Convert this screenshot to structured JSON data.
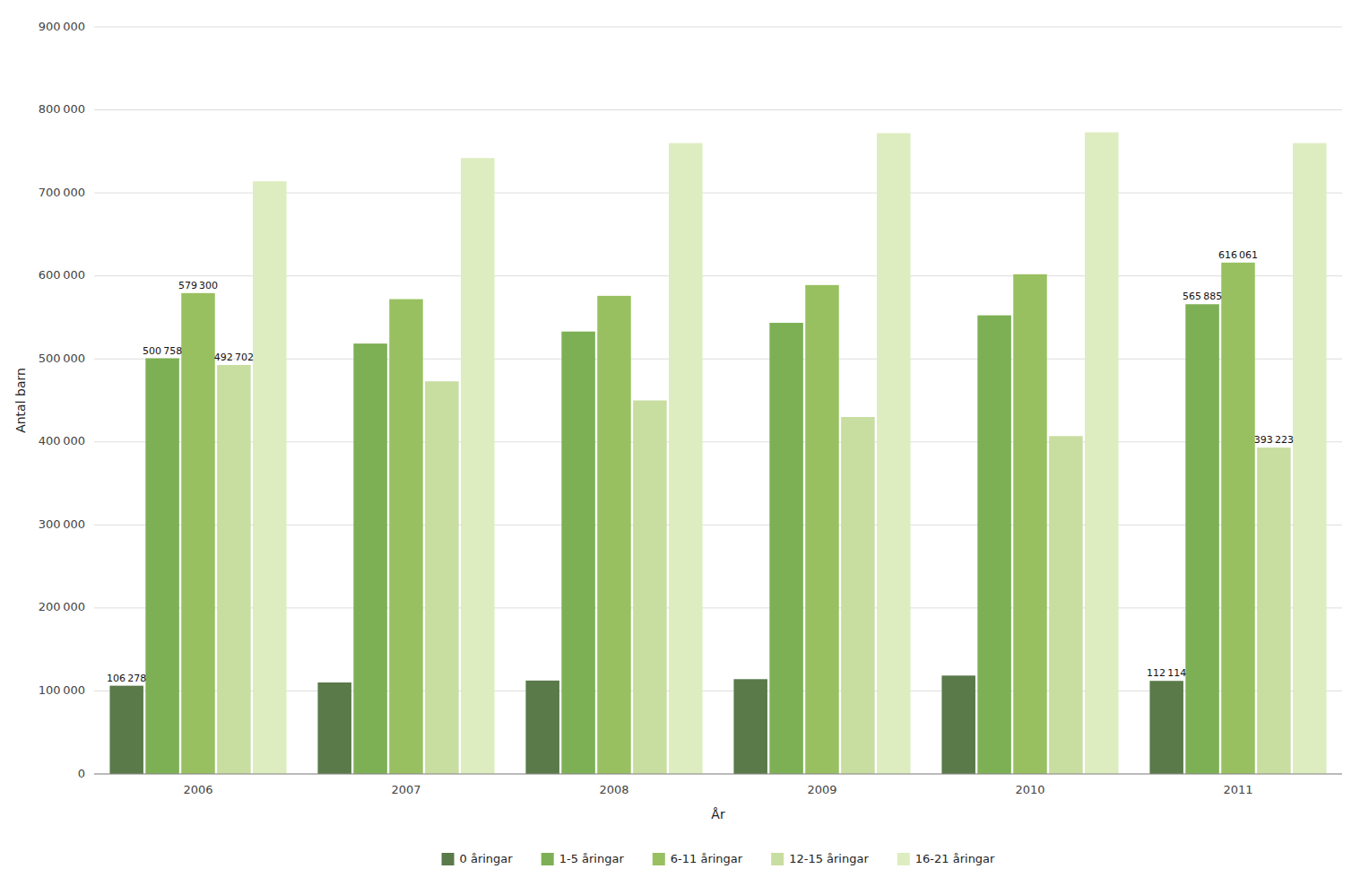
{
  "chart_data": {
    "type": "bar",
    "xlabel": "År",
    "ylabel": "Antal barn",
    "categories": [
      "2006",
      "2007",
      "2008",
      "2009",
      "2010",
      "2011"
    ],
    "series": [
      {
        "name": "0 åringar",
        "color": "#5a7a4a",
        "values": [
          106278,
          110200,
          112500,
          114200,
          118500,
          112114
        ],
        "value_labels": [
          "106 278",
          null,
          null,
          null,
          null,
          "112 114"
        ]
      },
      {
        "name": "1-5 åringar",
        "color": "#7db054",
        "values": [
          500758,
          518500,
          533000,
          543500,
          552500,
          565885
        ],
        "value_labels": [
          "500 758",
          null,
          null,
          null,
          null,
          "565 885"
        ]
      },
      {
        "name": "6-11 åringar",
        "color": "#98c060",
        "values": [
          579300,
          572000,
          576000,
          589000,
          602000,
          616061
        ],
        "value_labels": [
          "579 300",
          null,
          null,
          null,
          null,
          "616 061"
        ]
      },
      {
        "name": "12-15 åringar",
        "color": "#c8dda0",
        "values": [
          492702,
          473000,
          450000,
          430000,
          407000,
          393223
        ],
        "value_labels": [
          "492 702",
          null,
          null,
          null,
          null,
          "393 223"
        ]
      },
      {
        "name": "16-21 åringar",
        "color": "#deedc0",
        "values": [
          714000,
          742000,
          760000,
          772000,
          773000,
          760000
        ]
      }
    ],
    "ylim": [
      0,
      900000
    ],
    "yticks": [
      0,
      {
        "value": 100000,
        "label": "100 000"
      },
      {
        "value": 200000,
        "label": "200 000"
      },
      {
        "value": 300000,
        "label": "300 000"
      },
      {
        "value": 400000,
        "label": "400 000"
      },
      {
        "value": 500000,
        "label": "500 000"
      },
      {
        "value": 600000,
        "label": "600 000"
      },
      {
        "value": 700000,
        "label": "700 000"
      },
      {
        "value": 800000,
        "label": "800 000"
      },
      {
        "value": 900000,
        "label": "900 000"
      }
    ],
    "grid": true,
    "legend": "bottom"
  }
}
